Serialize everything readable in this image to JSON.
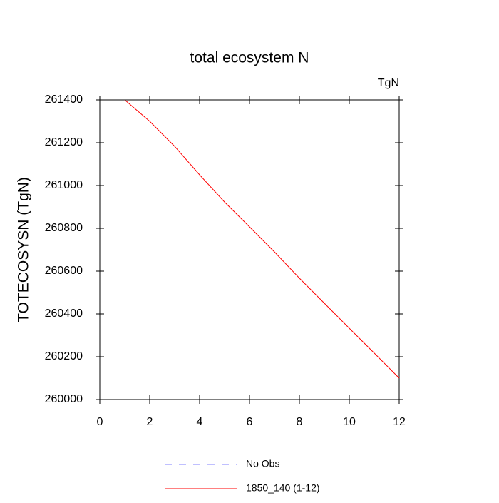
{
  "chart_data": {
    "type": "line",
    "title": "total ecosystem N",
    "units": "TgN",
    "y_label": "TOTECOSYSN  (TgN)",
    "x": [
      1,
      2,
      3,
      4,
      5,
      6,
      7,
      8,
      9,
      10,
      11,
      12
    ],
    "series": [
      {
        "name": "No Obs",
        "color": "#8080ff",
        "dashed": true,
        "values": [
          null,
          null,
          null,
          null,
          null,
          null,
          null,
          null,
          null,
          null,
          null,
          null
        ]
      },
      {
        "name": "1850_140 (1-12)",
        "color": "#ff0000",
        "dashed": false,
        "values": [
          261400,
          261300,
          261183,
          261050,
          260923,
          260807,
          260690,
          260567,
          260450,
          260333,
          260217,
          260100
        ]
      }
    ],
    "xlim": [
      0,
      12
    ],
    "xticks": [
      0,
      2,
      4,
      6,
      8,
      10,
      12
    ],
    "ylim": [
      260000,
      261400
    ],
    "yticks": [
      260000,
      260200,
      260400,
      260600,
      260800,
      261000,
      261200,
      261400
    ]
  }
}
